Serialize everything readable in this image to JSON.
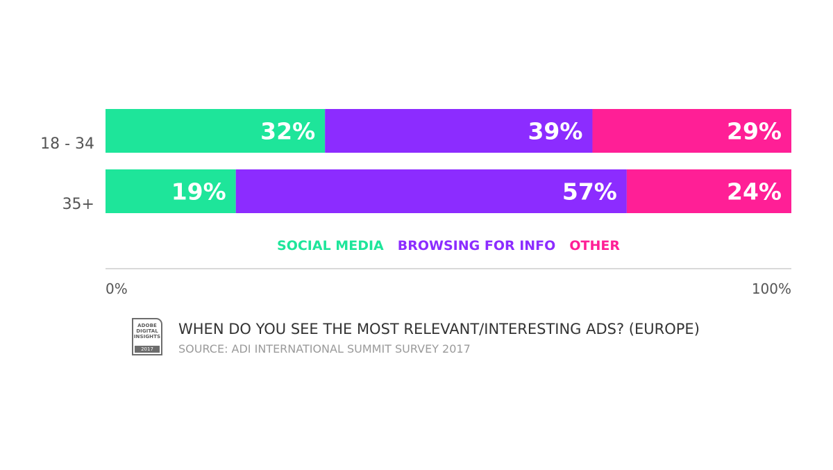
{
  "chart_data": {
    "type": "bar",
    "orientation": "horizontal",
    "stacked": true,
    "categories": [
      "18 - 34",
      "35+"
    ],
    "series": [
      {
        "name": "SOCIAL MEDIA",
        "color": "#1ee59a",
        "values": [
          32,
          19
        ],
        "labels": [
          "32%",
          "19%"
        ]
      },
      {
        "name": "BROWSING FOR INFO",
        "color": "#8c2cff",
        "values": [
          39,
          57
        ],
        "labels": [
          "39%",
          "57%"
        ]
      },
      {
        "name": "OTHER",
        "color": "#ff1f96",
        "values": [
          29,
          24
        ],
        "labels": [
          "29%",
          "24%"
        ]
      }
    ],
    "xlim": [
      0,
      100
    ],
    "xticks": [
      "0%",
      "100%"
    ],
    "legend_position": "bottom-center",
    "grid": false,
    "axis_color": "#d9d9d9"
  },
  "caption": {
    "badge_text": "ADOBE DIGITAL INSIGHTS",
    "badge_year": "2017",
    "title": "WHEN DO YOU SEE THE MOST RELEVANT/INTERESTING ADS? (EUROPE)",
    "source": "SOURCE: ADI INTERNATIONAL SUMMIT SURVEY 2017"
  }
}
